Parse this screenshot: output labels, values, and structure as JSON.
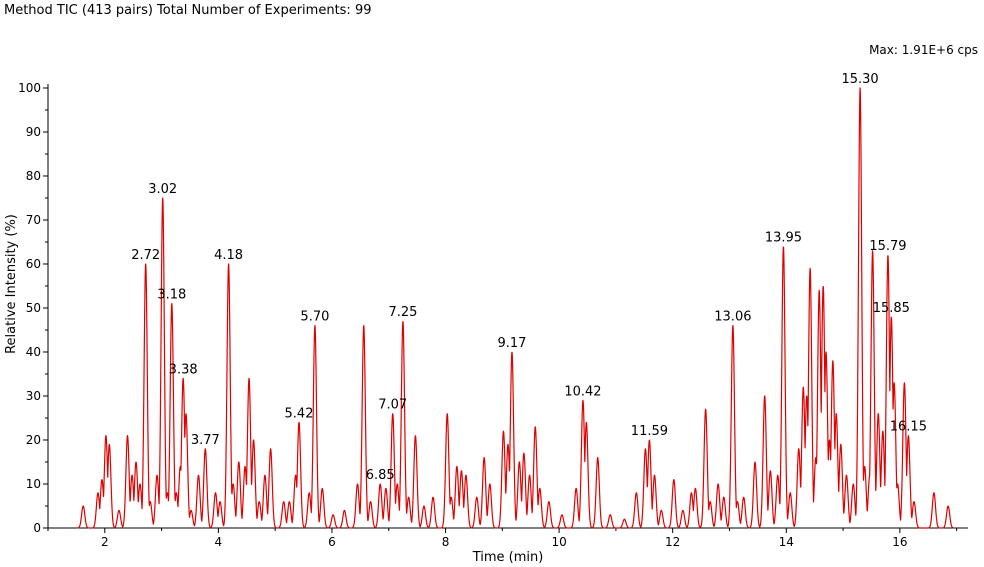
{
  "header": {
    "title": "Method TIC (413 pairs) Total Number of Experiments: 99",
    "max_label": "Max: 1.91E+6 cps"
  },
  "chart_data": {
    "type": "line",
    "title": "Method TIC (413 pairs) Total Number of Experiments: 99",
    "xlabel": "Time (min)",
    "ylabel": "Relative Intensity (%)",
    "xlim": [
      1.0,
      17.2
    ],
    "ylim": [
      0,
      100
    ],
    "x_ticks": [
      2,
      4,
      6,
      8,
      10,
      12,
      14,
      16
    ],
    "y_ticks": [
      0,
      10,
      20,
      30,
      40,
      50,
      60,
      70,
      80,
      90,
      100
    ],
    "line_color": "#e00000",
    "peak_width_min": 0.028,
    "peaks": [
      [
        1.62,
        5
      ],
      [
        1.88,
        8
      ],
      [
        1.95,
        11
      ],
      [
        2.02,
        21
      ],
      [
        2.08,
        19
      ],
      [
        2.25,
        4
      ],
      [
        2.4,
        21
      ],
      [
        2.48,
        12
      ],
      [
        2.55,
        15
      ],
      [
        2.62,
        10
      ],
      [
        2.72,
        60
      ],
      [
        2.8,
        6
      ],
      [
        2.92,
        12
      ],
      [
        3.02,
        75
      ],
      [
        3.1,
        8
      ],
      [
        3.18,
        51
      ],
      [
        3.26,
        8
      ],
      [
        3.33,
        14
      ],
      [
        3.38,
        34
      ],
      [
        3.43,
        26
      ],
      [
        3.52,
        4
      ],
      [
        3.65,
        12
      ],
      [
        3.77,
        18
      ],
      [
        3.95,
        8
      ],
      [
        4.03,
        6
      ],
      [
        4.18,
        60
      ],
      [
        4.26,
        10
      ],
      [
        4.36,
        15
      ],
      [
        4.47,
        14
      ],
      [
        4.54,
        34
      ],
      [
        4.62,
        20
      ],
      [
        4.72,
        6
      ],
      [
        4.82,
        12
      ],
      [
        4.92,
        18
      ],
      [
        5.15,
        6
      ],
      [
        5.25,
        6
      ],
      [
        5.36,
        12
      ],
      [
        5.42,
        24
      ],
      [
        5.6,
        8
      ],
      [
        5.7,
        46
      ],
      [
        5.83,
        9
      ],
      [
        6.02,
        3
      ],
      [
        6.22,
        4
      ],
      [
        6.45,
        10
      ],
      [
        6.56,
        46
      ],
      [
        6.68,
        6
      ],
      [
        6.85,
        10
      ],
      [
        6.95,
        9
      ],
      [
        7.07,
        26
      ],
      [
        7.15,
        10
      ],
      [
        7.25,
        47
      ],
      [
        7.35,
        7
      ],
      [
        7.47,
        21
      ],
      [
        7.62,
        5
      ],
      [
        7.78,
        7
      ],
      [
        8.03,
        26
      ],
      [
        8.1,
        7
      ],
      [
        8.2,
        14
      ],
      [
        8.28,
        13
      ],
      [
        8.36,
        12
      ],
      [
        8.55,
        7
      ],
      [
        8.68,
        16
      ],
      [
        8.78,
        10
      ],
      [
        9.02,
        22
      ],
      [
        9.1,
        19
      ],
      [
        9.17,
        40
      ],
      [
        9.3,
        15
      ],
      [
        9.38,
        17
      ],
      [
        9.48,
        12
      ],
      [
        9.58,
        23
      ],
      [
        9.66,
        9
      ],
      [
        9.82,
        6
      ],
      [
        10.05,
        3
      ],
      [
        10.3,
        9
      ],
      [
        10.42,
        29
      ],
      [
        10.48,
        24
      ],
      [
        10.68,
        16
      ],
      [
        10.9,
        3
      ],
      [
        11.15,
        2
      ],
      [
        11.36,
        8
      ],
      [
        11.52,
        18
      ],
      [
        11.59,
        20
      ],
      [
        11.68,
        12
      ],
      [
        11.8,
        4
      ],
      [
        12.02,
        11
      ],
      [
        12.18,
        4
      ],
      [
        12.33,
        8
      ],
      [
        12.4,
        9
      ],
      [
        12.58,
        27
      ],
      [
        12.66,
        6
      ],
      [
        12.8,
        10
      ],
      [
        12.9,
        7
      ],
      [
        13.06,
        46
      ],
      [
        13.14,
        6
      ],
      [
        13.25,
        7
      ],
      [
        13.45,
        15
      ],
      [
        13.62,
        30
      ],
      [
        13.72,
        13
      ],
      [
        13.85,
        12
      ],
      [
        13.95,
        64
      ],
      [
        14.07,
        8
      ],
      [
        14.22,
        18
      ],
      [
        14.3,
        32
      ],
      [
        14.36,
        30
      ],
      [
        14.42,
        59
      ],
      [
        14.52,
        16
      ],
      [
        14.58,
        54
      ],
      [
        14.65,
        55
      ],
      [
        14.7,
        40
      ],
      [
        14.76,
        20
      ],
      [
        14.82,
        38
      ],
      [
        14.88,
        26
      ],
      [
        14.96,
        19
      ],
      [
        15.06,
        12
      ],
      [
        15.18,
        10
      ],
      [
        15.3,
        100
      ],
      [
        15.38,
        14
      ],
      [
        15.47,
        12
      ],
      [
        15.52,
        63
      ],
      [
        15.62,
        26
      ],
      [
        15.7,
        22
      ],
      [
        15.79,
        62
      ],
      [
        15.85,
        48
      ],
      [
        15.9,
        33
      ],
      [
        15.96,
        10
      ],
      [
        16.08,
        33
      ],
      [
        16.15,
        21
      ],
      [
        16.25,
        6
      ],
      [
        16.6,
        8
      ],
      [
        16.85,
        5
      ]
    ],
    "peak_labels": [
      {
        "x": 2.72,
        "y": 60,
        "text": "2.72"
      },
      {
        "x": 3.02,
        "y": 75,
        "text": "3.02"
      },
      {
        "x": 3.18,
        "y": 51,
        "text": "3.18"
      },
      {
        "x": 3.38,
        "y": 34,
        "text": "3.38"
      },
      {
        "x": 3.77,
        "y": 18,
        "text": "3.77"
      },
      {
        "x": 4.18,
        "y": 60,
        "text": "4.18"
      },
      {
        "x": 5.42,
        "y": 24,
        "text": "5.42"
      },
      {
        "x": 5.7,
        "y": 46,
        "text": "5.70"
      },
      {
        "x": 6.85,
        "y": 10,
        "text": "6.85"
      },
      {
        "x": 7.07,
        "y": 26,
        "text": "7.07"
      },
      {
        "x": 7.25,
        "y": 47,
        "text": "7.25"
      },
      {
        "x": 9.17,
        "y": 40,
        "text": "9.17"
      },
      {
        "x": 10.42,
        "y": 29,
        "text": "10.42"
      },
      {
        "x": 11.59,
        "y": 20,
        "text": "11.59"
      },
      {
        "x": 13.06,
        "y": 46,
        "text": "13.06"
      },
      {
        "x": 13.95,
        "y": 64,
        "text": "13.95"
      },
      {
        "x": 15.3,
        "y": 100,
        "text": "15.30"
      },
      {
        "x": 15.79,
        "y": 62,
        "text": "15.79"
      },
      {
        "x": 15.85,
        "y": 48,
        "text": "15.85"
      },
      {
        "x": 16.15,
        "y": 21,
        "text": "16.15"
      }
    ]
  }
}
